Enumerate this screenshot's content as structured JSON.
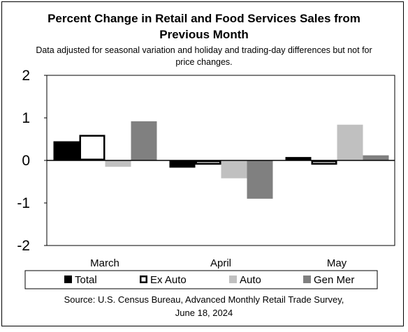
{
  "title_line1": "Percent Change in Retail and Food Services Sales from",
  "title_line2": "Previous Month",
  "subtitle_line1": "Data adjusted for seasonal variation and holiday and trading-day differences but not for",
  "subtitle_line2": "price changes.",
  "source_line1": "Source: U.S. Census Bureau, Advanced Monthly Retail Trade Survey,",
  "source_line2": "June 18, 2024",
  "chart_data": {
    "type": "bar",
    "categories": [
      "March",
      "April",
      "May"
    ],
    "ylim": [
      -2,
      2
    ],
    "yticks": [
      2,
      1,
      0,
      -1,
      -2
    ],
    "legend_position": "bottom",
    "series": [
      {
        "name": "Total",
        "values": [
          0.45,
          -0.17,
          0.08
        ],
        "fill": "#000000",
        "stroke": "#000000"
      },
      {
        "name": "Ex Auto",
        "values": [
          0.6,
          -0.1,
          -0.1
        ],
        "fill": "#ffffff",
        "stroke": "#000000"
      },
      {
        "name": "Auto",
        "values": [
          -0.15,
          -0.42,
          0.84
        ],
        "fill": "#c0c0c0",
        "stroke": "#c0c0c0"
      },
      {
        "name": "Gen Mer",
        "values": [
          0.92,
          -0.9,
          0.12
        ],
        "fill": "#808080",
        "stroke": "#808080"
      }
    ]
  }
}
